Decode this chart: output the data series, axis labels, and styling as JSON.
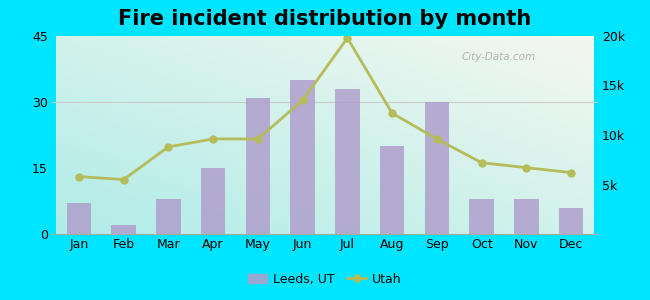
{
  "title": "Fire incident distribution by month",
  "months": [
    "Jan",
    "Feb",
    "Mar",
    "Apr",
    "May",
    "Jun",
    "Jul",
    "Aug",
    "Sep",
    "Oct",
    "Nov",
    "Dec"
  ],
  "leeds_values": [
    7,
    2,
    8,
    15,
    31,
    35,
    33,
    20,
    30,
    8,
    8,
    6
  ],
  "utah_values": [
    5800,
    5500,
    8800,
    9600,
    9600,
    13500,
    19800,
    12200,
    9600,
    7200,
    6700,
    6200
  ],
  "bar_color": "#b09fcc",
  "line_color": "#b5bc5a",
  "bar_alpha": 0.85,
  "ylim_left": [
    0,
    45
  ],
  "ylim_right": [
    0,
    20000
  ],
  "yticks_left": [
    0,
    15,
    30,
    45
  ],
  "yticks_right": [
    5000,
    10000,
    15000,
    20000
  ],
  "ytick_labels_right": [
    "5k",
    "10k",
    "15k",
    "20k"
  ],
  "title_fontsize": 15,
  "tick_fontsize": 9,
  "legend_labels": [
    "Leeds, UT",
    "Utah"
  ],
  "watermark": "City-Data.com",
  "fig_bg": "#00e5ff",
  "plot_bg_colors": [
    "#aaf0ee",
    "#d8f0d8",
    "#f0f8f0"
  ],
  "grid_color": "#cccccc"
}
